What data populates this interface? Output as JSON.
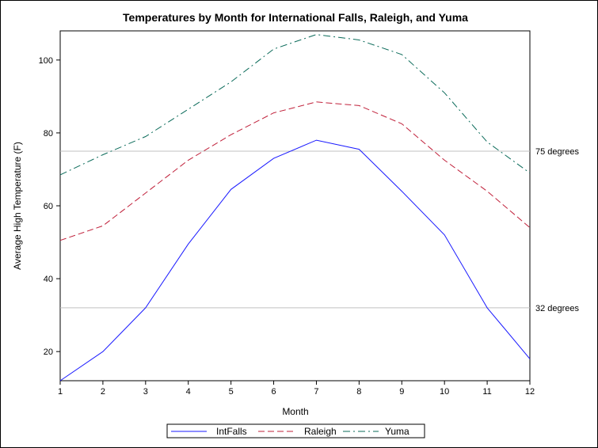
{
  "chart_data": {
    "type": "line",
    "title": "Temperatures by Month for International Falls,  Raleigh, and Yuma",
    "xlabel": "Month",
    "ylabel": "Average High Temperature (F)",
    "x": [
      1,
      2,
      3,
      4,
      5,
      6,
      7,
      8,
      9,
      10,
      11,
      12
    ],
    "xlim": [
      1,
      12
    ],
    "ylim": [
      12,
      108
    ],
    "xticks": [
      1,
      2,
      3,
      4,
      5,
      6,
      7,
      8,
      9,
      10,
      11,
      12
    ],
    "yticks": [
      20,
      40,
      60,
      80,
      100
    ],
    "grid": false,
    "legend_position": "bottom",
    "series": [
      {
        "name": "IntFalls",
        "color": "#1a1aff",
        "dash": "solid",
        "values": [
          12.0,
          20.0,
          32.0,
          49.5,
          64.5,
          73.0,
          78.0,
          75.5,
          64.0,
          52.0,
          32.0,
          18.0
        ]
      },
      {
        "name": "Raleigh",
        "color": "#c0203a",
        "dash": "dashed",
        "values": [
          50.5,
          54.5,
          63.5,
          72.5,
          79.5,
          85.5,
          88.5,
          87.5,
          82.5,
          72.5,
          64.0,
          54.0
        ]
      },
      {
        "name": "Yuma",
        "color": "#0b6b5a",
        "dash": "dashdot",
        "values": [
          68.5,
          74.0,
          79.0,
          86.5,
          94.0,
          103.0,
          107.0,
          105.5,
          101.5,
          91.0,
          77.5,
          69.0
        ]
      }
    ],
    "reference_lines": [
      {
        "value": 75,
        "label": "75 degrees",
        "color": "#c0c0c0"
      },
      {
        "value": 32,
        "label": "32 degrees",
        "color": "#c0c0c0"
      }
    ]
  }
}
